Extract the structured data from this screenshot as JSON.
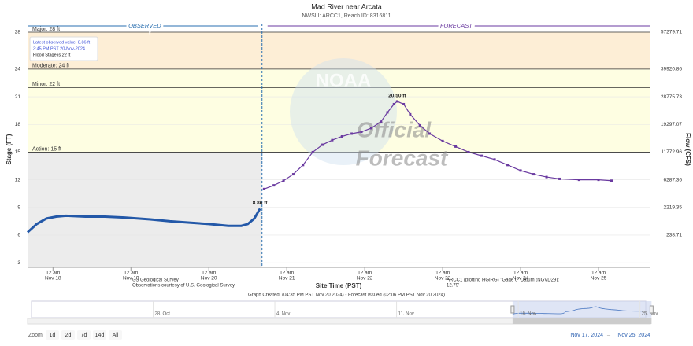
{
  "chart_data": {
    "type": "line",
    "title": "Mad River near Arcata",
    "subtitle": "NWSLI: ARCC1, Reach ID: 8316811",
    "y_label": "Stage (FT)",
    "y2_label": "Flow (CFS)",
    "x_label": "Site Time (PST)",
    "ylim": [
      2.5,
      28
    ],
    "yticks": [
      3,
      6,
      9,
      12,
      15,
      18,
      21,
      24,
      28
    ],
    "y2ticks": [
      238.71,
      2219.35,
      6287.36,
      11772.96,
      19297.07,
      28775.73,
      39920.86,
      57279.71
    ],
    "xlim": [
      "2024-11-17T16:10",
      "2024-11-25T16:00"
    ],
    "xticks": [
      {
        "value": "2024-11-18T00:00",
        "label": [
          "12 am",
          "Nov 18"
        ]
      },
      {
        "value": "2024-11-19T00:00",
        "label": [
          "12 am",
          "Nov 19"
        ]
      },
      {
        "value": "2024-11-20T00:00",
        "label": [
          "12 am",
          "Nov 20"
        ]
      },
      {
        "value": "2024-11-21T00:00",
        "label": [
          "12 am",
          "Nov 21"
        ]
      },
      {
        "value": "2024-11-22T00:00",
        "label": [
          "12 am",
          "Nov 22"
        ]
      },
      {
        "value": "2024-11-23T00:00",
        "label": [
          "12 am",
          "Nov 23"
        ]
      },
      {
        "value": "2024-11-24T00:00",
        "label": [
          "12 am",
          "Nov 24"
        ]
      },
      {
        "value": "2024-11-25T00:00",
        "label": [
          "12 am",
          "Nov 25"
        ]
      }
    ],
    "section_labels": [
      "OBSERVED",
      "FORECAST"
    ],
    "thresholds": [
      {
        "label": "Major: 28 ft",
        "value": 28,
        "color": "#fbdde0"
      },
      {
        "label": "Moderate: 24 ft",
        "value": 24,
        "color": "#fdeed6"
      },
      {
        "label": "Minor: 22 ft",
        "value": 22,
        "color": "#fefee2"
      },
      {
        "label": "Action: 15 ft",
        "value": 15,
        "color": "#ececec"
      }
    ],
    "info_box": [
      "Latest observed value: 8.86 ft",
      "3:45 PM PST 20-Nov-2024",
      "Flood Stage is 22 ft"
    ],
    "series": [
      {
        "name": "Observed",
        "color": "#2358a8",
        "x": [
          "2024-11-17T16:10",
          "2024-11-17T19:00",
          "2024-11-17T22:00",
          "2024-11-18T01:00",
          "2024-11-18T04:00",
          "2024-11-18T10:00",
          "2024-11-18T16:00",
          "2024-11-18T22:00",
          "2024-11-19T06:00",
          "2024-11-19T12:00",
          "2024-11-19T18:00",
          "2024-11-20T00:00",
          "2024-11-20T06:00",
          "2024-11-20T10:00",
          "2024-11-20T12:00",
          "2024-11-20T14:00",
          "2024-11-20T15:45"
        ],
        "values": [
          6.3,
          7.2,
          7.8,
          8.0,
          8.1,
          8.0,
          8.0,
          7.9,
          7.7,
          7.5,
          7.35,
          7.2,
          7.0,
          7.0,
          7.2,
          7.8,
          8.86
        ],
        "value_labels": [
          null,
          null,
          null,
          null,
          null,
          null,
          null,
          null,
          null,
          null,
          null,
          null,
          null,
          null,
          null,
          null,
          "8.86 ft"
        ]
      },
      {
        "name": "Forecast",
        "color": "#6a3aa0",
        "x": [
          "2024-11-20T17:00",
          "2024-11-20T20:00",
          "2024-11-20T23:00",
          "2024-11-21T02:00",
          "2024-11-21T05:00",
          "2024-11-21T08:00",
          "2024-11-21T11:00",
          "2024-11-21T14:00",
          "2024-11-21T17:00",
          "2024-11-21T20:00",
          "2024-11-21T23:00",
          "2024-11-22T02:00",
          "2024-11-22T05:00",
          "2024-11-22T07:00",
          "2024-11-22T09:00",
          "2024-11-22T10:00",
          "2024-11-22T12:00",
          "2024-11-22T14:00",
          "2024-11-22T17:00",
          "2024-11-22T20:00",
          "2024-11-23T00:00",
          "2024-11-23T04:00",
          "2024-11-23T08:00",
          "2024-11-23T12:00",
          "2024-11-23T16:00",
          "2024-11-23T20:00",
          "2024-11-24T00:00",
          "2024-11-24T04:00",
          "2024-11-24T08:00",
          "2024-11-24T12:00",
          "2024-11-24T18:00",
          "2024-11-25T00:00",
          "2024-11-25T04:00"
        ],
        "values": [
          11.0,
          11.4,
          11.9,
          12.6,
          13.6,
          15.0,
          15.8,
          16.3,
          16.7,
          17.0,
          17.2,
          17.6,
          18.3,
          19.3,
          20.2,
          20.5,
          20.2,
          19.1,
          17.9,
          17.0,
          16.2,
          15.6,
          15.0,
          14.6,
          14.2,
          13.6,
          13.0,
          12.6,
          12.3,
          12.1,
          12.0,
          12.0,
          11.9
        ],
        "value_labels": [
          null,
          null,
          null,
          null,
          null,
          null,
          null,
          null,
          null,
          null,
          null,
          null,
          null,
          null,
          null,
          "20.50 ft",
          null,
          null,
          null,
          null,
          null,
          null,
          null,
          null,
          null,
          null,
          null,
          null,
          null,
          null,
          null,
          null,
          null
        ]
      }
    ],
    "watermark": [
      "NOAA",
      "Official",
      "Forecast"
    ],
    "footer": {
      "left": [
        "US Geological Survey",
        "Observations courtesy of U.S. Geological Survey"
      ],
      "right": [
        "ARCC1 (plotting HGIRG) \"Gage 0\" Datum (NGVD29):",
        "12.79'"
      ],
      "created": "Graph Created: (04:35 PM PST Nov 20 2024) - Forecast Issued (02:06 PM PST Nov 20 2024)"
    },
    "navigator": {
      "xlim": [
        "2024-10-21T00:00",
        "2024-11-25T08:00"
      ],
      "xticks": [
        {
          "value": "2024-10-28T00:00",
          "label": "28. Oct"
        },
        {
          "value": "2024-11-04T00:00",
          "label": "4. Nov"
        },
        {
          "value": "2024-11-11T00:00",
          "label": "11. Nov"
        },
        {
          "value": "2024-11-18T00:00",
          "label": "18. Nov"
        },
        {
          "value": "2024-11-25T00:00",
          "label": "25. Nov"
        }
      ]
    },
    "zoom": {
      "label": "Zoom",
      "buttons": [
        "1d",
        "2d",
        "7d",
        "14d",
        "All"
      ],
      "range": [
        "Nov 17, 2024",
        "→",
        "Nov 25, 2024"
      ]
    }
  }
}
